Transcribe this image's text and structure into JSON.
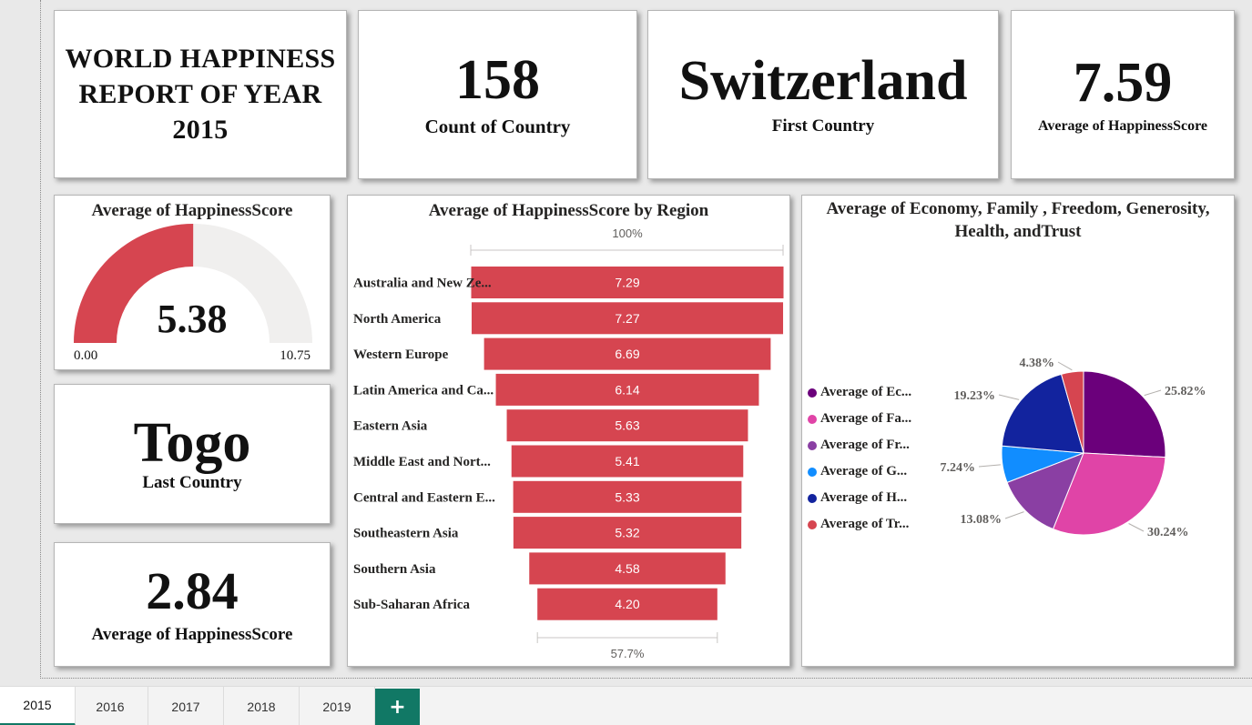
{
  "report_title": "WORLD HAPPINESS REPORT OF YEAR 2015",
  "count_card": {
    "value": "158",
    "label": "Count of Country"
  },
  "first_card": {
    "value": "Switzerland",
    "label": "First Country"
  },
  "max_card": {
    "value": "7.59",
    "label": "Average of HappinessScore"
  },
  "last_card": {
    "value": "Togo",
    "label": "Last Country"
  },
  "min_card": {
    "value": "2.84",
    "label": "Average of HappinessScore"
  },
  "gauge": {
    "title": "Average of HappinessScore",
    "value_label": "5.38",
    "value": 5.38,
    "min_label": "0.00",
    "max_label": "10.75",
    "min": 0,
    "max": 10.75,
    "fill_color": "#d64550",
    "track_color": "#f0efee"
  },
  "funnel": {
    "title": "Average of HappinessScore by Region",
    "top_percent": "100%",
    "bottom_percent": "57.7%",
    "bar_color": "#d64550"
  },
  "pie": {
    "title": "Average of Economy, Family , Freedom, Generosity, Health, andTrust",
    "legend": [
      {
        "label": "Average of Ec...",
        "color": "#6b007b"
      },
      {
        "label": "Average of Fa...",
        "color": "#e044a7"
      },
      {
        "label": "Average of Fr...",
        "color": "#8a3fa3"
      },
      {
        "label": "Average of G...",
        "color": "#118dff"
      },
      {
        "label": "Average of H...",
        "color": "#12239e"
      },
      {
        "label": "Average of Tr...",
        "color": "#d64550"
      }
    ]
  },
  "chart_data": [
    {
      "type": "funnel",
      "title": "Average of HappinessScore by Region",
      "categories": [
        "Australia and New Ze...",
        "North America",
        "Western Europe",
        "Latin America and Ca...",
        "Eastern Asia",
        "Middle East and Nort...",
        "Central and Eastern E...",
        "Southeastern Asia",
        "Southern Asia",
        "Sub-Saharan Africa"
      ],
      "values": [
        7.29,
        7.27,
        6.69,
        6.14,
        5.63,
        5.41,
        5.33,
        5.32,
        4.58,
        4.2
      ],
      "value_labels": [
        "7.29",
        "7.27",
        "6.69",
        "6.14",
        "5.63",
        "5.41",
        "5.33",
        "5.32",
        "4.58",
        "4.20"
      ]
    },
    {
      "type": "pie",
      "title": "Average of Economy, Family , Freedom, Generosity, Health, andTrust",
      "categories": [
        "Average of Ec...",
        "Average of Fa...",
        "Average of Fr...",
        "Average of G...",
        "Average of H...",
        "Average of Tr..."
      ],
      "values": [
        25.82,
        30.24,
        13.08,
        7.24,
        19.23,
        4.38
      ],
      "value_labels": [
        "25.82%",
        "30.24%",
        "13.08%",
        "7.24%",
        "19.23%",
        "4.38%"
      ],
      "colors": [
        "#6b007b",
        "#e044a7",
        "#8a3fa3",
        "#118dff",
        "#12239e",
        "#d64550"
      ]
    }
  ],
  "tabs": [
    {
      "label": "2015",
      "active": true
    },
    {
      "label": "2016",
      "active": false
    },
    {
      "label": "2017",
      "active": false
    },
    {
      "label": "2018",
      "active": false
    },
    {
      "label": "2019",
      "active": false
    }
  ],
  "add_tab_icon": "plus-icon",
  "add_tab_glyph": "+",
  "accent_color": "#117865"
}
